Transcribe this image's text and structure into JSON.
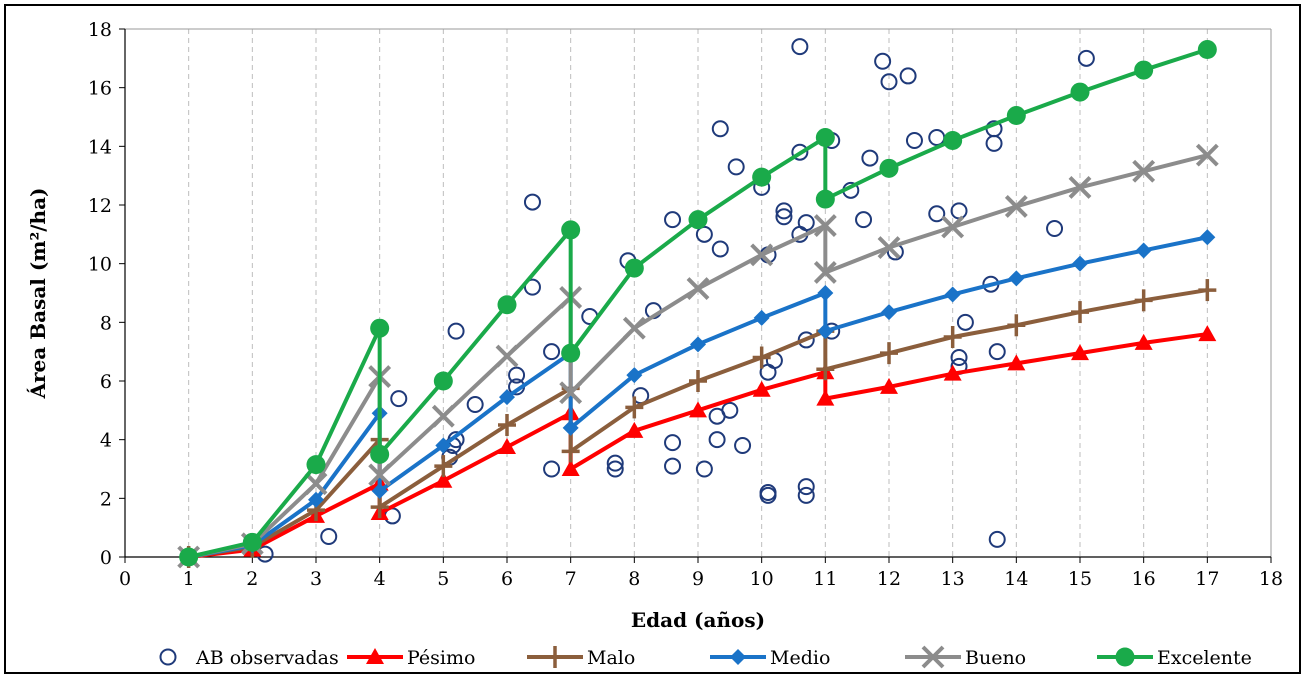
{
  "chart_data": {
    "type": "line",
    "xlabel": "Edad (años)",
    "ylabel": "Área Basal (m²/ha)",
    "xlim": [
      0,
      18
    ],
    "ylim": [
      0,
      18
    ],
    "x_ticks": [
      0,
      1,
      2,
      3,
      4,
      5,
      6,
      7,
      8,
      9,
      10,
      11,
      12,
      13,
      14,
      15,
      16,
      17,
      18
    ],
    "y_ticks": [
      0,
      2,
      4,
      6,
      8,
      10,
      12,
      14,
      16,
      18
    ],
    "grid": "vertical dashed",
    "legend_position": "bottom",
    "series": [
      {
        "name": "AB observadas",
        "kind": "scatter",
        "color": "#1f3a7a",
        "marker": "open-circle",
        "points": [
          [
            2.2,
            0.1
          ],
          [
            3.2,
            0.7
          ],
          [
            4.2,
            1.4
          ],
          [
            4.3,
            5.4
          ],
          [
            5.1,
            3.4
          ],
          [
            5.15,
            3.8
          ],
          [
            5.2,
            4.0
          ],
          [
            5.2,
            7.7
          ],
          [
            5.5,
            5.2
          ],
          [
            6.15,
            5.8
          ],
          [
            6.15,
            6.2
          ],
          [
            6.4,
            9.2
          ],
          [
            6.4,
            12.1
          ],
          [
            6.7,
            3.0
          ],
          [
            6.7,
            7.0
          ],
          [
            7.3,
            8.2
          ],
          [
            7.7,
            3.0
          ],
          [
            7.7,
            3.2
          ],
          [
            7.9,
            10.1
          ],
          [
            8.1,
            5.5
          ],
          [
            8.3,
            8.4
          ],
          [
            8.6,
            3.1
          ],
          [
            8.6,
            3.9
          ],
          [
            8.6,
            11.5
          ],
          [
            9.1,
            3.0
          ],
          [
            9.1,
            11.0
          ],
          [
            9.3,
            4.0
          ],
          [
            9.3,
            4.8
          ],
          [
            9.35,
            10.5
          ],
          [
            9.35,
            14.6
          ],
          [
            9.5,
            5.0
          ],
          [
            9.6,
            13.3
          ],
          [
            9.7,
            3.8
          ],
          [
            10.0,
            12.6
          ],
          [
            10.1,
            2.1
          ],
          [
            10.1,
            2.2
          ],
          [
            10.1,
            6.3
          ],
          [
            10.1,
            10.3
          ],
          [
            10.2,
            6.7
          ],
          [
            10.35,
            11.6
          ],
          [
            10.35,
            11.8
          ],
          [
            10.6,
            11.0
          ],
          [
            10.6,
            13.8
          ],
          [
            10.6,
            17.4
          ],
          [
            10.7,
            2.1
          ],
          [
            10.7,
            2.4
          ],
          [
            10.7,
            7.4
          ],
          [
            10.7,
            11.4
          ],
          [
            11.1,
            7.7
          ],
          [
            11.1,
            14.2
          ],
          [
            11.4,
            12.5
          ],
          [
            11.6,
            11.5
          ],
          [
            11.7,
            13.6
          ],
          [
            11.9,
            16.9
          ],
          [
            12.0,
            16.2
          ],
          [
            12.1,
            10.4
          ],
          [
            12.3,
            16.4
          ],
          [
            12.4,
            14.2
          ],
          [
            12.75,
            11.7
          ],
          [
            12.75,
            14.3
          ],
          [
            13.1,
            6.5
          ],
          [
            13.1,
            6.8
          ],
          [
            13.1,
            11.8
          ],
          [
            13.2,
            8.0
          ],
          [
            13.6,
            9.3
          ],
          [
            13.65,
            14.6
          ],
          [
            13.65,
            14.1
          ],
          [
            13.7,
            0.6
          ],
          [
            13.7,
            7.0
          ],
          [
            14.6,
            11.2
          ],
          [
            15.1,
            17.0
          ]
        ]
      },
      {
        "name": "Pésimo",
        "kind": "line",
        "color": "#ff0000",
        "marker": "triangle",
        "points": [
          [
            1,
            0
          ],
          [
            2,
            0.25
          ],
          [
            3,
            1.4
          ],
          [
            4,
            2.5
          ],
          [
            4,
            1.5
          ],
          [
            5,
            2.6
          ],
          [
            6,
            3.75
          ],
          [
            7,
            4.9
          ],
          [
            7,
            3.0
          ],
          [
            8,
            4.3
          ],
          [
            9,
            5.0
          ],
          [
            10,
            5.7
          ],
          [
            11,
            6.3
          ],
          [
            11,
            5.4
          ],
          [
            12,
            5.8
          ],
          [
            13,
            6.25
          ],
          [
            14,
            6.6
          ],
          [
            15,
            6.95
          ],
          [
            16,
            7.3
          ],
          [
            17,
            7.6
          ]
        ]
      },
      {
        "name": "Malo",
        "kind": "line",
        "color": "#8b5e3c",
        "marker": "plus",
        "points": [
          [
            1,
            0
          ],
          [
            2,
            0.35
          ],
          [
            3,
            1.6
          ],
          [
            4,
            4.0
          ],
          [
            4,
            1.7
          ],
          [
            5,
            3.1
          ],
          [
            6,
            4.5
          ],
          [
            7,
            5.75
          ],
          [
            7,
            3.6
          ],
          [
            8,
            5.1
          ],
          [
            9,
            6.0
          ],
          [
            10,
            6.8
          ],
          [
            11,
            7.7
          ],
          [
            11,
            6.4
          ],
          [
            12,
            6.95
          ],
          [
            13,
            7.5
          ],
          [
            14,
            7.9
          ],
          [
            15,
            8.35
          ],
          [
            16,
            8.75
          ],
          [
            17,
            9.1
          ]
        ]
      },
      {
        "name": "Medio",
        "kind": "line",
        "color": "#1a73c8",
        "marker": "diamond",
        "points": [
          [
            1,
            0
          ],
          [
            2,
            0.4
          ],
          [
            3,
            1.95
          ],
          [
            4,
            4.9
          ],
          [
            4,
            2.25
          ],
          [
            5,
            3.8
          ],
          [
            6,
            5.45
          ],
          [
            7,
            6.95
          ],
          [
            7,
            4.4
          ],
          [
            8,
            6.2
          ],
          [
            9,
            7.25
          ],
          [
            10,
            8.15
          ],
          [
            11,
            9.0
          ],
          [
            11,
            7.7
          ],
          [
            12,
            8.35
          ],
          [
            13,
            8.95
          ],
          [
            14,
            9.5
          ],
          [
            15,
            10.0
          ],
          [
            16,
            10.45
          ],
          [
            17,
            10.9
          ]
        ]
      },
      {
        "name": "Bueno",
        "kind": "line",
        "color": "#8c8c8c",
        "marker": "x",
        "points": [
          [
            1,
            0
          ],
          [
            2,
            0.45
          ],
          [
            3,
            2.5
          ],
          [
            4,
            6.15
          ],
          [
            4,
            2.8
          ],
          [
            5,
            4.8
          ],
          [
            6,
            6.85
          ],
          [
            7,
            8.85
          ],
          [
            7,
            5.6
          ],
          [
            8,
            7.8
          ],
          [
            9,
            9.15
          ],
          [
            10,
            10.3
          ],
          [
            11,
            11.3
          ],
          [
            11,
            9.7
          ],
          [
            12,
            10.55
          ],
          [
            13,
            11.25
          ],
          [
            14,
            11.95
          ],
          [
            15,
            12.6
          ],
          [
            16,
            13.15
          ],
          [
            17,
            13.7
          ]
        ]
      },
      {
        "name": "Excelente",
        "kind": "line",
        "color": "#1aaa4a",
        "marker": "circle",
        "points": [
          [
            1,
            0
          ],
          [
            2,
            0.5
          ],
          [
            3,
            3.15
          ],
          [
            4,
            7.8
          ],
          [
            4,
            3.5
          ],
          [
            5,
            6.0
          ],
          [
            6,
            8.6
          ],
          [
            7,
            11.15
          ],
          [
            7,
            6.95
          ],
          [
            8,
            9.85
          ],
          [
            9,
            11.5
          ],
          [
            10,
            12.95
          ],
          [
            11,
            14.3
          ],
          [
            11,
            12.2
          ],
          [
            12,
            13.25
          ],
          [
            13,
            14.2
          ],
          [
            14,
            15.05
          ],
          [
            15,
            15.85
          ],
          [
            16,
            16.6
          ],
          [
            17,
            17.3
          ]
        ]
      }
    ]
  }
}
